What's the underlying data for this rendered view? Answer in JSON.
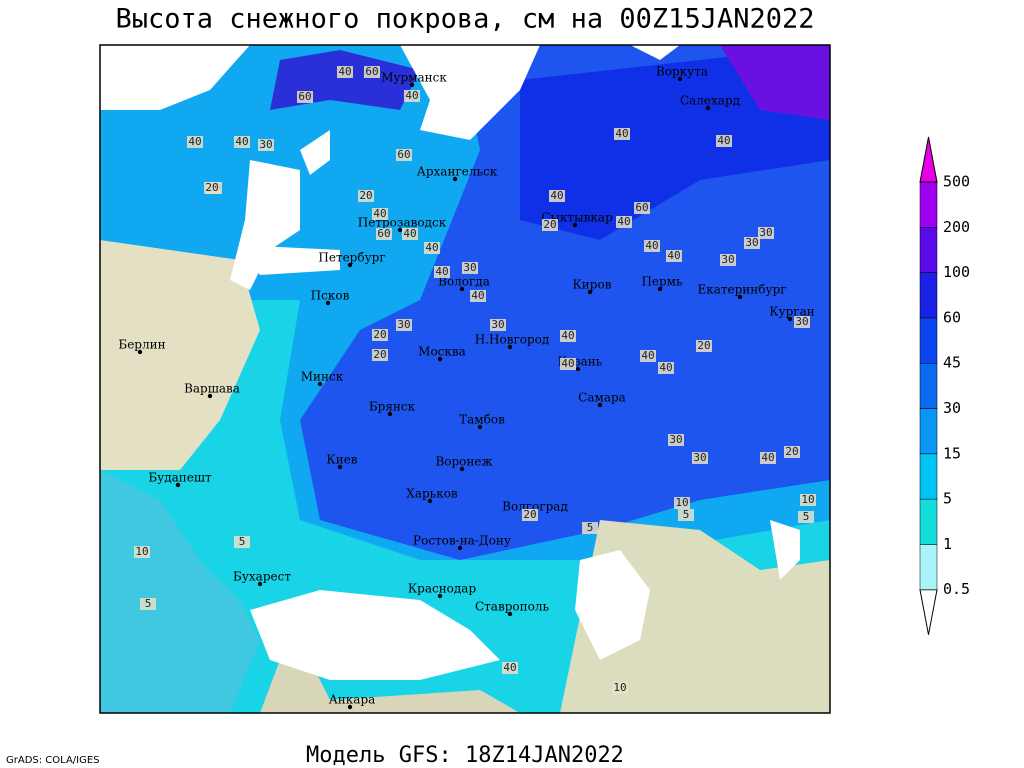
{
  "title": "Высота снежного покрова, см на 00Z15JAN2022",
  "subtitle": "Модель GFS: 18Z14JAN2022",
  "credit": "GrADS: COLA/IGES",
  "cities": [
    "Мурманск",
    "Воркута",
    "Салехард",
    "Архангельск",
    "Петрозаводск",
    "Сыктывкар",
    "Петербург",
    "Вологда",
    "Киров",
    "Пермь",
    "Екатеринбург",
    "Курган",
    "Псков",
    "Н.Новгород",
    "Москва",
    "Казань",
    "Берлин",
    "Варшава",
    "Минск",
    "Брянск",
    "Тамбов",
    "Самара",
    "Киев",
    "Воронеж",
    "Харьков",
    "Волгоград",
    "Будапешт",
    "Ростов-на-Дону",
    "Бухарест",
    "Краснодар",
    "Ставрополь",
    "Анкара"
  ],
  "contour_labels": [
    40,
    60,
    60,
    40,
    40,
    40,
    30,
    60,
    20,
    20,
    40,
    60,
    40,
    40,
    30,
    40,
    20,
    40,
    60,
    40,
    40,
    40,
    30,
    30,
    30,
    20,
    30,
    20,
    40,
    30,
    40,
    40,
    40,
    40,
    30,
    20,
    30,
    30,
    40,
    20,
    40,
    20,
    10,
    5,
    10,
    5,
    10,
    5,
    5,
    20,
    5,
    40,
    10,
    40
  ],
  "legend": {
    "levels": [
      0.5,
      1,
      5,
      15,
      30,
      45,
      60,
      100,
      200,
      500
    ],
    "colors": [
      "#ffffff",
      "#a8f4f8",
      "#14dcdc",
      "#00c4f4",
      "#0a96f4",
      "#0a6af0",
      "#0a46f0",
      "#1a22e6",
      "#5a0ae6",
      "#a000f0",
      "#e600e6"
    ]
  }
}
